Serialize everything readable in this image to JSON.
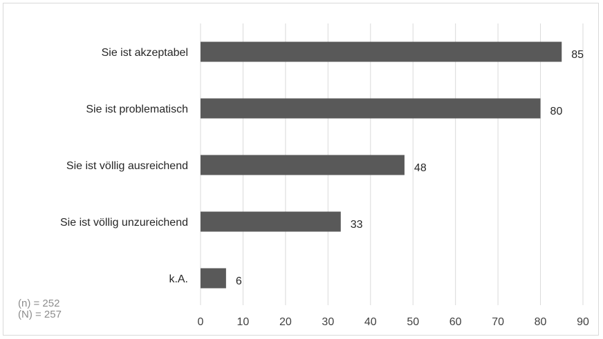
{
  "chart_data": {
    "type": "bar",
    "orientation": "horizontal",
    "categories": [
      "Sie ist akzeptabel",
      "Sie ist problematisch",
      "Sie ist völlig ausreichend",
      "Sie ist völlig unzureichend",
      "k.A."
    ],
    "values": [
      85,
      80,
      48,
      33,
      6
    ],
    "data_labels": [
      "85",
      "80",
      "48",
      "33",
      "6"
    ],
    "xlim": [
      0,
      90
    ],
    "x_ticks": [
      0,
      10,
      20,
      30,
      40,
      50,
      60,
      70,
      80,
      90
    ],
    "grid": "vertical",
    "bar_color": "#595959",
    "gridline_color": "#d9d9d9",
    "legend": "none"
  },
  "notes": {
    "sample_n": "(n) = 252",
    "sample_N": "(N) = 257"
  }
}
